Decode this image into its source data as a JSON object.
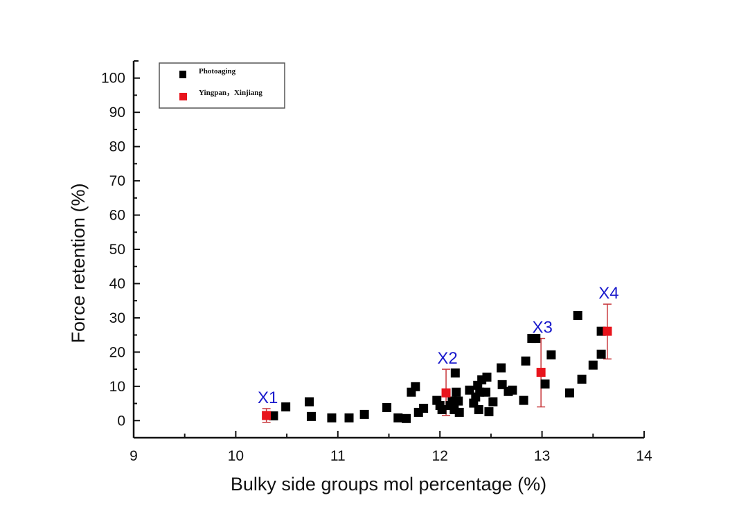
{
  "chart_data": {
    "type": "scatter",
    "title": "",
    "xlabel": "Bulky side groups mol percentage (%)",
    "ylabel": "Force retention (%)",
    "xlim": [
      9,
      14
    ],
    "ylim": [
      -5,
      105
    ],
    "xticks": [
      9,
      10,
      11,
      12,
      13,
      14
    ],
    "yticks": [
      0,
      10,
      20,
      30,
      40,
      50,
      60,
      70,
      80,
      90,
      100
    ],
    "grid": false,
    "legend_position": "top-left",
    "colors": {
      "photoaging": "#000000",
      "field": "#e8141c",
      "annotation": "#1a1acc",
      "errorbar": "#c8383c"
    },
    "series": [
      {
        "name": "Photoaging",
        "marker": "square",
        "points": [
          [
            10.37,
            1.4
          ],
          [
            10.49,
            4.0
          ],
          [
            10.72,
            5.5
          ],
          [
            10.74,
            1.2
          ],
          [
            10.94,
            0.8
          ],
          [
            11.11,
            0.8
          ],
          [
            11.26,
            1.8
          ],
          [
            11.48,
            3.8
          ],
          [
            11.59,
            0.8
          ],
          [
            11.67,
            0.6
          ],
          [
            11.72,
            8.3
          ],
          [
            11.76,
            9.9
          ],
          [
            11.79,
            2.4
          ],
          [
            11.84,
            3.6
          ],
          [
            11.97,
            5.9
          ],
          [
            12.0,
            4.4
          ],
          [
            12.02,
            3.2
          ],
          [
            12.1,
            4.4
          ],
          [
            12.12,
            5.7
          ],
          [
            12.15,
            13.9
          ],
          [
            12.16,
            8.3
          ],
          [
            12.14,
            3.2
          ],
          [
            12.18,
            5.7
          ],
          [
            12.19,
            2.4
          ],
          [
            12.29,
            8.9
          ],
          [
            12.33,
            5.1
          ],
          [
            12.35,
            6.9
          ],
          [
            12.37,
            10.3
          ],
          [
            12.38,
            3.2
          ],
          [
            12.39,
            8.3
          ],
          [
            12.41,
            11.9
          ],
          [
            12.46,
            12.7
          ],
          [
            12.45,
            8.3
          ],
          [
            12.48,
            2.6
          ],
          [
            12.52,
            5.5
          ],
          [
            12.6,
            15.4
          ],
          [
            12.61,
            10.5
          ],
          [
            12.67,
            8.5
          ],
          [
            12.71,
            8.9
          ],
          [
            12.82,
            5.9
          ],
          [
            12.84,
            17.4
          ],
          [
            12.9,
            24.0
          ],
          [
            12.94,
            24.0
          ],
          [
            13.03,
            10.7
          ],
          [
            13.09,
            19.2
          ],
          [
            13.27,
            8.1
          ],
          [
            13.35,
            30.7
          ],
          [
            13.39,
            12.1
          ],
          [
            13.5,
            16.2
          ],
          [
            13.58,
            19.4
          ],
          [
            13.58,
            26.1
          ]
        ]
      },
      {
        "name": "Yingpan，Xinjiang",
        "marker": "square",
        "points": [
          {
            "label": "X1",
            "x": 10.3,
            "y": 1.5,
            "err_low": -0.5,
            "err_high": 3.5
          },
          {
            "label": "X2",
            "x": 12.06,
            "y": 8.1,
            "err_low": 1.5,
            "err_high": 15.0
          },
          {
            "label": "X3",
            "x": 12.99,
            "y": 14.1,
            "err_low": 4.0,
            "err_high": 24.0
          },
          {
            "label": "X4",
            "x": 13.64,
            "y": 26.1,
            "err_low": 18.0,
            "err_high": 34.0
          }
        ]
      }
    ]
  }
}
